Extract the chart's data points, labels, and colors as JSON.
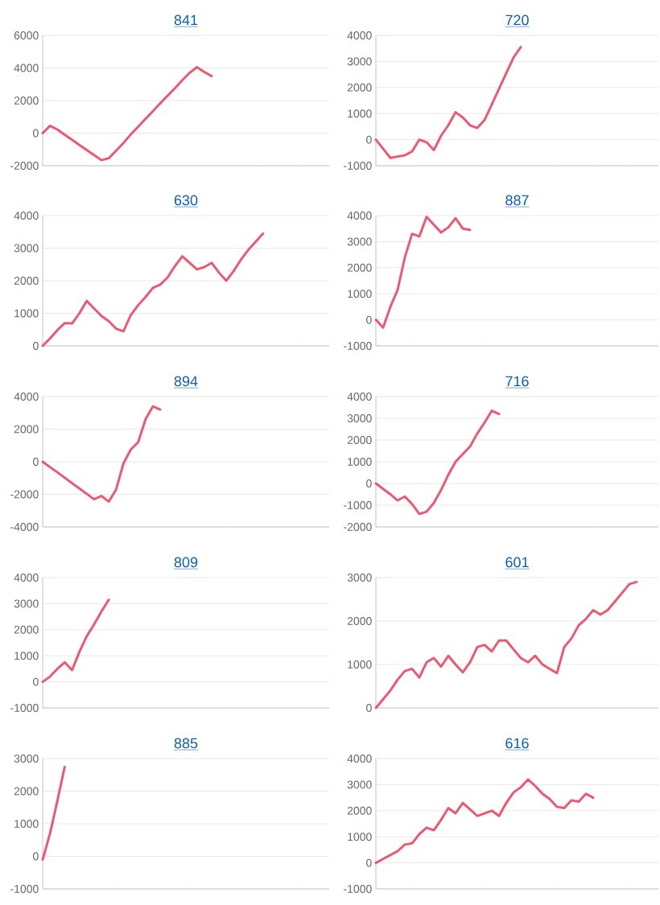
{
  "chart_data": [
    {
      "type": "line",
      "title": "841",
      "categories": [
        null,
        null,
        null,
        null,
        null,
        null,
        null,
        null,
        null,
        null,
        null,
        null,
        null,
        null,
        null,
        null,
        null,
        null,
        null,
        null,
        null,
        null,
        null,
        null,
        null,
        null,
        null,
        null,
        null,
        null,
        null,
        null,
        null,
        null,
        null,
        null,
        null,
        null,
        null,
        null
      ],
      "color": "#f0566f",
      "ylim": [
        -2000,
        6000
      ],
      "yticks": [
        -2000,
        0,
        2000,
        4000,
        6000
      ],
      "grid": "y",
      "values": [
        0,
        450,
        220,
        -100,
        -410,
        -730,
        -1040,
        -1350,
        -1660,
        -1540,
        -1070,
        -600,
        -80,
        400,
        880,
        1350,
        1830,
        2300,
        2750,
        3250,
        3700,
        4050,
        3750,
        3500,
        null,
        null,
        null,
        null,
        null,
        null,
        null,
        null,
        null,
        null,
        null,
        null,
        null,
        null,
        null,
        null
      ]
    },
    {
      "type": "line",
      "title": "720",
      "categories": [
        null,
        null,
        null,
        null,
        null,
        null,
        null,
        null,
        null,
        null,
        null,
        null,
        null,
        null,
        null,
        null,
        null,
        null,
        null,
        null,
        null,
        null,
        null,
        null,
        null,
        null,
        null,
        null,
        null,
        null,
        null,
        null,
        null,
        null,
        null,
        null,
        null,
        null,
        null,
        null
      ],
      "color": "#f0566f",
      "ylim": [
        -1000,
        4000
      ],
      "yticks": [
        -1000,
        0,
        1000,
        2000,
        3000,
        4000
      ],
      "grid": "y",
      "values": [
        0,
        -350,
        -700,
        -650,
        -600,
        -450,
        0,
        -100,
        -400,
        150,
        550,
        1050,
        850,
        550,
        450,
        750,
        1350,
        1950,
        2550,
        3150,
        3550,
        null,
        null,
        null,
        null,
        null,
        null,
        null,
        null,
        null,
        null,
        null,
        null,
        null,
        null,
        null,
        null,
        null,
        null,
        null
      ]
    },
    {
      "type": "line",
      "title": "630",
      "categories": [
        null,
        null,
        null,
        null,
        null,
        null,
        null,
        null,
        null,
        null,
        null,
        null,
        null,
        null,
        null,
        null,
        null,
        null,
        null,
        null,
        null,
        null,
        null,
        null,
        null,
        null,
        null,
        null,
        null,
        null,
        null,
        null,
        null,
        null,
        null,
        null,
        null,
        null,
        null,
        null
      ],
      "color": "#f0566f",
      "ylim": [
        0,
        4000
      ],
      "yticks": [
        0,
        1000,
        2000,
        3000,
        4000
      ],
      "grid": "y",
      "values": [
        0,
        230,
        480,
        700,
        690,
        1000,
        1380,
        1150,
        920,
        760,
        530,
        450,
        950,
        1250,
        1500,
        1780,
        1880,
        2100,
        2450,
        2750,
        2550,
        2350,
        2420,
        2550,
        2250,
        2000,
        2300,
        2650,
        2950,
        3200,
        3450,
        null,
        null,
        null,
        null,
        null,
        null,
        null,
        null,
        null
      ]
    },
    {
      "type": "line",
      "title": "887",
      "categories": [
        null,
        null,
        null,
        null,
        null,
        null,
        null,
        null,
        null,
        null,
        null,
        null,
        null,
        null,
        null,
        null,
        null,
        null,
        null,
        null,
        null,
        null,
        null,
        null,
        null,
        null,
        null,
        null,
        null,
        null,
        null,
        null,
        null,
        null,
        null,
        null,
        null,
        null,
        null,
        null
      ],
      "color": "#f0566f",
      "ylim": [
        -1000,
        4000
      ],
      "yticks": [
        -1000,
        0,
        1000,
        2000,
        3000,
        4000
      ],
      "grid": "y",
      "values": [
        0,
        -300,
        500,
        1150,
        2400,
        3300,
        3200,
        3950,
        3650,
        3350,
        3550,
        3900,
        3500,
        3450,
        null,
        null,
        null,
        null,
        null,
        null,
        null,
        null,
        null,
        null,
        null,
        null,
        null,
        null,
        null,
        null,
        null,
        null,
        null,
        null,
        null,
        null,
        null,
        null,
        null,
        null
      ]
    },
    {
      "type": "line",
      "title": "894",
      "categories": [
        null,
        null,
        null,
        null,
        null,
        null,
        null,
        null,
        null,
        null,
        null,
        null,
        null,
        null,
        null,
        null,
        null,
        null,
        null,
        null,
        null,
        null,
        null,
        null,
        null,
        null,
        null,
        null,
        null,
        null,
        null,
        null,
        null,
        null,
        null,
        null,
        null,
        null,
        null,
        null
      ],
      "color": "#f0566f",
      "ylim": [
        -4000,
        4000
      ],
      "yticks": [
        -4000,
        -2000,
        0,
        2000,
        4000
      ],
      "grid": "y",
      "values": [
        0,
        -330,
        -650,
        -980,
        -1310,
        -1640,
        -1970,
        -2300,
        -2100,
        -2450,
        -1700,
        -100,
        750,
        1200,
        2600,
        3400,
        3200,
        null,
        null,
        null,
        null,
        null,
        null,
        null,
        null,
        null,
        null,
        null,
        null,
        null,
        null,
        null,
        null,
        null,
        null,
        null,
        null,
        null,
        null,
        null
      ]
    },
    {
      "type": "line",
      "title": "716",
      "categories": [
        null,
        null,
        null,
        null,
        null,
        null,
        null,
        null,
        null,
        null,
        null,
        null,
        null,
        null,
        null,
        null,
        null,
        null,
        null,
        null,
        null,
        null,
        null,
        null,
        null,
        null,
        null,
        null,
        null,
        null,
        null,
        null,
        null,
        null,
        null,
        null,
        null,
        null,
        null,
        null
      ],
      "color": "#f0566f",
      "ylim": [
        -2000,
        4000
      ],
      "yticks": [
        -2000,
        -1000,
        0,
        1000,
        2000,
        3000,
        4000
      ],
      "grid": "y",
      "values": [
        0,
        -250,
        -500,
        -780,
        -600,
        -950,
        -1400,
        -1300,
        -900,
        -300,
        400,
        1000,
        1350,
        1700,
        2300,
        2800,
        3350,
        3200,
        null,
        null,
        null,
        null,
        null,
        null,
        null,
        null,
        null,
        null,
        null,
        null,
        null,
        null,
        null,
        null,
        null,
        null,
        null,
        null,
        null,
        null
      ]
    },
    {
      "type": "line",
      "title": "809",
      "categories": [
        null,
        null,
        null,
        null,
        null,
        null,
        null,
        null,
        null,
        null,
        null,
        null,
        null,
        null,
        null,
        null,
        null,
        null,
        null,
        null,
        null,
        null,
        null,
        null,
        null,
        null,
        null,
        null,
        null,
        null,
        null,
        null,
        null,
        null,
        null,
        null,
        null,
        null,
        null,
        null
      ],
      "color": "#f0566f",
      "ylim": [
        -1000,
        4000
      ],
      "yticks": [
        -1000,
        0,
        1000,
        2000,
        3000,
        4000
      ],
      "grid": "y",
      "values": [
        0,
        200,
        500,
        750,
        450,
        1150,
        1750,
        2200,
        2700,
        3150,
        null,
        null,
        null,
        null,
        null,
        null,
        null,
        null,
        null,
        null,
        null,
        null,
        null,
        null,
        null,
        null,
        null,
        null,
        null,
        null,
        null,
        null,
        null,
        null,
        null,
        null,
        null,
        null,
        null,
        null
      ]
    },
    {
      "type": "line",
      "title": "601",
      "categories": [
        null,
        null,
        null,
        null,
        null,
        null,
        null,
        null,
        null,
        null,
        null,
        null,
        null,
        null,
        null,
        null,
        null,
        null,
        null,
        null,
        null,
        null,
        null,
        null,
        null,
        null,
        null,
        null,
        null,
        null,
        null,
        null,
        null,
        null,
        null,
        null,
        null,
        null,
        null,
        null
      ],
      "color": "#f0566f",
      "ylim": [
        0,
        3000
      ],
      "yticks": [
        0,
        1000,
        2000,
        3000
      ],
      "grid": "y",
      "values": [
        0,
        200,
        400,
        650,
        850,
        900,
        700,
        1050,
        1150,
        950,
        1200,
        1000,
        820,
        1050,
        1400,
        1450,
        1300,
        1550,
        1550,
        1350,
        1150,
        1050,
        1200,
        1000,
        900,
        800,
        1400,
        1600,
        1900,
        2050,
        2250,
        2150,
        2250,
        2450,
        2650,
        2850,
        2900,
        null,
        null,
        null
      ]
    },
    {
      "type": "line",
      "title": "885",
      "categories": [
        null,
        null,
        null,
        null,
        null,
        null,
        null,
        null,
        null,
        null,
        null,
        null,
        null,
        null,
        null,
        null,
        null,
        null,
        null,
        null,
        null,
        null,
        null,
        null,
        null,
        null,
        null,
        null,
        null,
        null,
        null,
        null,
        null,
        null,
        null,
        null,
        null,
        null,
        null,
        null
      ],
      "color": "#f0566f",
      "ylim": [
        -1000,
        3000
      ],
      "yticks": [
        -1000,
        0,
        1000,
        2000,
        3000
      ],
      "grid": "y",
      "values": [
        -100,
        700,
        1700,
        2750,
        null,
        null,
        null,
        null,
        null,
        null,
        null,
        null,
        null,
        null,
        null,
        null,
        null,
        null,
        null,
        null,
        null,
        null,
        null,
        null,
        null,
        null,
        null,
        null,
        null,
        null,
        null,
        null,
        null,
        null,
        null,
        null,
        null,
        null,
        null,
        null
      ]
    },
    {
      "type": "line",
      "title": "616",
      "categories": [
        null,
        null,
        null,
        null,
        null,
        null,
        null,
        null,
        null,
        null,
        null,
        null,
        null,
        null,
        null,
        null,
        null,
        null,
        null,
        null,
        null,
        null,
        null,
        null,
        null,
        null,
        null,
        null,
        null,
        null,
        null,
        null,
        null,
        null,
        null,
        null,
        null,
        null,
        null,
        null
      ],
      "color": "#f0566f",
      "ylim": [
        -1000,
        4000
      ],
      "yticks": [
        -1000,
        0,
        1000,
        2000,
        3000,
        4000
      ],
      "grid": "y",
      "values": [
        0,
        150,
        300,
        450,
        700,
        750,
        1100,
        1350,
        1250,
        1650,
        2100,
        1900,
        2300,
        2050,
        1800,
        1900,
        2000,
        1800,
        2300,
        2700,
        2900,
        3200,
        2950,
        2650,
        2450,
        2150,
        2100,
        2400,
        2350,
        2650,
        2500,
        null,
        null,
        null,
        null,
        null,
        null,
        null,
        null,
        null
      ]
    }
  ]
}
